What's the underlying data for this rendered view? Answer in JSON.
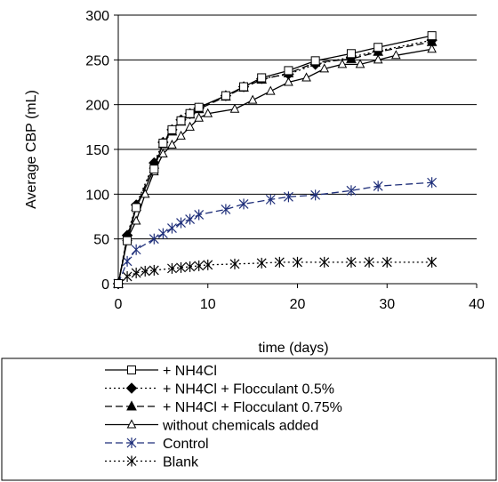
{
  "chart_data": {
    "type": "line",
    "xlabel": "time (days)",
    "ylabel": "Average CBP (mL)",
    "xlim": [
      0,
      40
    ],
    "ylim": [
      0,
      300
    ],
    "xticks": [
      0,
      10,
      20,
      30,
      40
    ],
    "yticks": [
      0,
      50,
      100,
      150,
      200,
      250,
      300
    ],
    "grid": "horizontal",
    "legend_position": "bottom",
    "series": [
      {
        "name": "+ NH4Cl",
        "color": "#000000",
        "line_style": "solid",
        "marker": "open-square",
        "x": [
          0,
          1,
          2,
          4,
          5,
          6,
          7,
          8,
          9,
          12,
          14,
          16,
          19,
          22,
          26,
          29,
          35
        ],
        "y": [
          0,
          48,
          85,
          128,
          157,
          172,
          182,
          190,
          197,
          210,
          220,
          230,
          238,
          249,
          257,
          264,
          277
        ]
      },
      {
        "name": "+ NH4Cl + Flocculant 0.5%",
        "color": "#000000",
        "line_style": "dotted",
        "marker": "filled-diamond",
        "x": [
          0,
          1,
          2,
          4,
          5,
          6,
          7,
          8,
          9,
          12,
          14,
          16,
          19,
          22,
          26,
          29,
          35
        ],
        "y": [
          0,
          54,
          88,
          135,
          158,
          172,
          183,
          190,
          196,
          210,
          220,
          229,
          234,
          245,
          253,
          260,
          272
        ]
      },
      {
        "name": "+ NH4Cl + Flocculant 0.75%",
        "color": "#000000",
        "line_style": "dashed",
        "marker": "filled-triangle",
        "x": [
          0,
          1,
          2,
          4,
          5,
          6,
          7,
          8,
          9,
          12,
          14,
          16,
          19,
          22,
          26,
          29,
          35
        ],
        "y": [
          0,
          52,
          86,
          133,
          156,
          170,
          181,
          189,
          195,
          209,
          219,
          228,
          235,
          247,
          251,
          259,
          270
        ]
      },
      {
        "name": "without chemicals added",
        "color": "#000000",
        "line_style": "solid",
        "marker": "open-triangle",
        "x": [
          0,
          1,
          2,
          3,
          4,
          5,
          6,
          7,
          8,
          9,
          10,
          13,
          15,
          17,
          19,
          21,
          23,
          25,
          27,
          29,
          31,
          35
        ],
        "y": [
          0,
          50,
          70,
          100,
          125,
          145,
          155,
          165,
          175,
          185,
          190,
          195,
          205,
          215,
          225,
          230,
          240,
          245,
          245,
          250,
          255,
          262
        ]
      },
      {
        "name": "Control",
        "color": "#1f2f7a",
        "line_style": "dashed",
        "marker": "asterisk",
        "x": [
          0,
          1,
          2,
          4,
          5,
          6,
          7,
          8,
          9,
          12,
          14,
          17,
          19,
          22,
          26,
          29,
          35
        ],
        "y": [
          0,
          25,
          38,
          50,
          56,
          62,
          68,
          72,
          77,
          83,
          89,
          94,
          97,
          99,
          104,
          109,
          113
        ]
      },
      {
        "name": "Blank",
        "color": "#000000",
        "line_style": "dotted",
        "marker": "asterisk",
        "x": [
          0,
          1,
          2,
          3,
          4,
          6,
          7,
          8,
          9,
          10,
          13,
          16,
          18,
          20,
          23,
          26,
          28,
          30,
          35
        ],
        "y": [
          0,
          8,
          12,
          14,
          15,
          17,
          18,
          19,
          20,
          21,
          22,
          23,
          24,
          24,
          24,
          24,
          24,
          24,
          24
        ]
      }
    ]
  }
}
